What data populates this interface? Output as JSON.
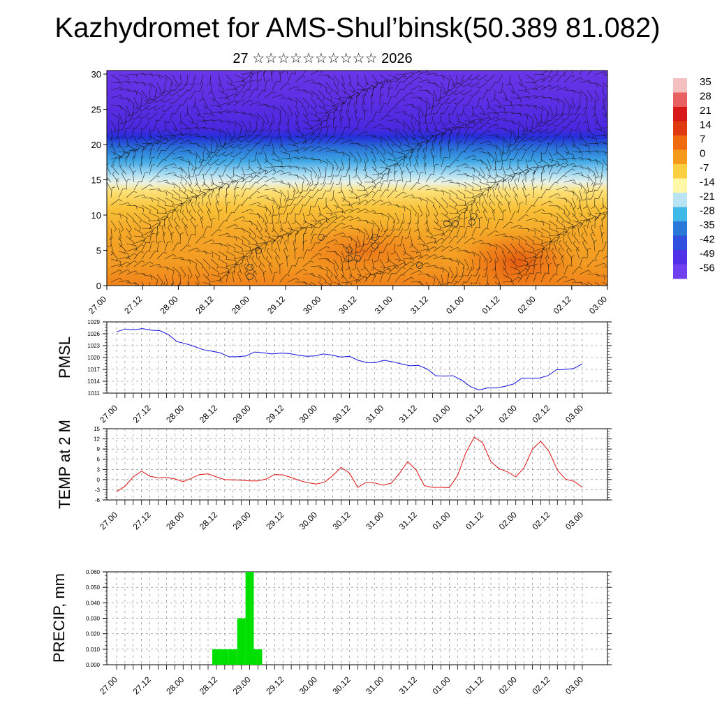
{
  "header": {
    "title": "Kazhydromet for AMS-Shul’binsk(50.389 81.082)",
    "subtitle": "27 ☆☆☆☆☆☆☆☆☆☆ 2026"
  },
  "colors": {
    "pmsl_line": "#1010e0",
    "temp_line": "#e01010",
    "precip_bar": "#00e000",
    "cross_section_cold": "#5a1ae0",
    "cross_section_warm": "#f08a10"
  },
  "chart_data": [
    {
      "type": "heatmap",
      "title": "",
      "xlabel": "",
      "ylabel": "",
      "x_tick_labels": [
        "27.00",
        "27.12",
        "28.00",
        "28.12",
        "29.00",
        "29.12",
        "30.00",
        "30.12",
        "31.00",
        "31.12",
        "01.00",
        "01.12",
        "02.00",
        "02.12",
        "03.00"
      ],
      "y_ticks": [
        0,
        5,
        10,
        15,
        20,
        25,
        30
      ],
      "ylim": [
        0,
        30.5
      ],
      "colorbar_labels": [
        "35",
        "28",
        "21",
        "14",
        "7",
        "0",
        "-7",
        "-14",
        "-21",
        "-28",
        "-35",
        "-42",
        "-49",
        "-56"
      ],
      "colorbar_colors": [
        "#f5c0c0",
        "#e86060",
        "#d81818",
        "#e03a10",
        "#f06a10",
        "#f59a1a",
        "#fbd040",
        "#fff8a8",
        "#b8e4f4",
        "#40b8e8",
        "#2a78d8",
        "#3050e0",
        "#5030e8",
        "#7040f0"
      ],
      "description_layers": [
        "temperature shading",
        "wind barbs"
      ]
    },
    {
      "type": "line",
      "ylabel": "PMSL",
      "x_tick_labels": [
        "27.00",
        "27.12",
        "28.00",
        "28.12",
        "29.00",
        "29.12",
        "30.00",
        "30.12",
        "31.00",
        "31.12",
        "01.00",
        "01.12",
        "02.00",
        "02.12",
        "03.00"
      ],
      "ylim": [
        1011,
        1029
      ],
      "y_tick_labels": [
        "1029",
        "1026",
        "1023",
        "1020",
        "1017",
        "1014",
        "1011"
      ],
      "series": [
        {
          "values": [
            1026.5,
            1027.2,
            1027.0,
            1027.3,
            1026.9,
            1026.8,
            1025.8,
            1024.0,
            1023.5,
            1022.8,
            1022.0,
            1021.6,
            1021.2,
            1020.2,
            1020.2,
            1020.4,
            1021.4,
            1021.2,
            1020.9,
            1021.1,
            1021.0,
            1020.6,
            1020.3,
            1020.4,
            1020.9,
            1020.6,
            1020.1,
            1020.3,
            1019.3,
            1018.7,
            1018.7,
            1019.3,
            1018.9,
            1018.4,
            1017.9,
            1018.0,
            1017.1,
            1015.4,
            1015.3,
            1015.4,
            1014.3,
            1012.7,
            1011.8,
            1012.3,
            1012.3,
            1012.7,
            1013.3,
            1014.8,
            1014.8,
            1014.8,
            1015.4,
            1016.9,
            1017.0,
            1017.2,
            1018.4
          ]
        }
      ]
    },
    {
      "type": "line",
      "ylabel": "TEMP at 2 M",
      "x_tick_labels": [
        "27.00",
        "27.12",
        "28.00",
        "28.12",
        "29.00",
        "29.12",
        "30.00",
        "30.12",
        "31.00",
        "31.12",
        "01.00",
        "01.12",
        "02.00",
        "02.12",
        "03.00"
      ],
      "ylim": [
        -6,
        15
      ],
      "y_tick_labels": [
        "15",
        "12",
        "9",
        "6",
        "3",
        "0",
        "-3",
        "-6"
      ],
      "series": [
        {
          "values": [
            -3.5,
            -2.0,
            0.8,
            2.5,
            1.0,
            0.5,
            0.6,
            0.2,
            -0.6,
            0.4,
            1.5,
            1.7,
            0.8,
            0.0,
            -0.1,
            -0.2,
            -0.4,
            -0.4,
            0.2,
            1.5,
            1.4,
            0.6,
            -0.3,
            -0.9,
            -1.3,
            -0.8,
            1.2,
            3.6,
            1.9,
            -2.3,
            -0.8,
            -1.0,
            -1.6,
            -1.1,
            1.8,
            5.3,
            2.9,
            -1.8,
            -2.3,
            -2.3,
            -2.4,
            1.2,
            8.0,
            12.5,
            10.9,
            5.3,
            3.2,
            2.3,
            0.8,
            3.5,
            9.0,
            11.3,
            8.3,
            2.8,
            0.1,
            -0.5,
            -2.3
          ]
        }
      ]
    },
    {
      "type": "bar",
      "ylabel": "PRECIP, mm",
      "x_tick_labels": [
        "27.00",
        "27.12",
        "28.00",
        "28.12",
        "29.00",
        "29.12",
        "30.00",
        "30.12",
        "31.00",
        "31.12",
        "01.00",
        "01.12",
        "02.00",
        "02.12",
        "03.00"
      ],
      "ylim": [
        0,
        0.06
      ],
      "y_tick_labels": [
        "0.060",
        "0.050",
        "0.040",
        "0.030",
        "0.020",
        "0.010",
        "0.000"
      ],
      "values": [
        0,
        0,
        0,
        0,
        0,
        0,
        0,
        0,
        0,
        0,
        0,
        0,
        0.01,
        0.01,
        0.01,
        0.03,
        0.06,
        0.01,
        0,
        0,
        0,
        0,
        0,
        0,
        0,
        0,
        0,
        0,
        0,
        0,
        0,
        0,
        0,
        0,
        0,
        0,
        0,
        0,
        0,
        0,
        0,
        0,
        0,
        0,
        0,
        0,
        0,
        0,
        0,
        0,
        0,
        0,
        0,
        0,
        0,
        0,
        0
      ]
    }
  ]
}
